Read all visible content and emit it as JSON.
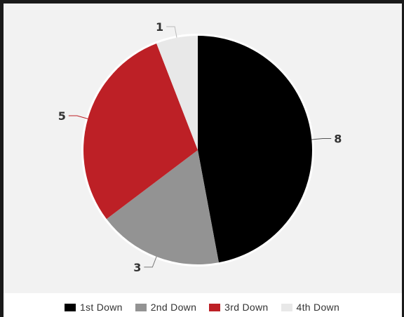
{
  "chart_data": {
    "type": "pie",
    "categories": [
      "1st Down",
      "2nd Down",
      "3rd Down",
      "4th Down"
    ],
    "values": [
      8,
      3,
      5,
      1
    ],
    "colors": [
      "#000000",
      "#939393",
      "#bd2026",
      "#e8e8e8"
    ],
    "data_labels": [
      "8",
      "3",
      "5",
      "1"
    ],
    "legend_position": "bottom",
    "start_angle": "12 o'clock",
    "direction": "clockwise"
  }
}
